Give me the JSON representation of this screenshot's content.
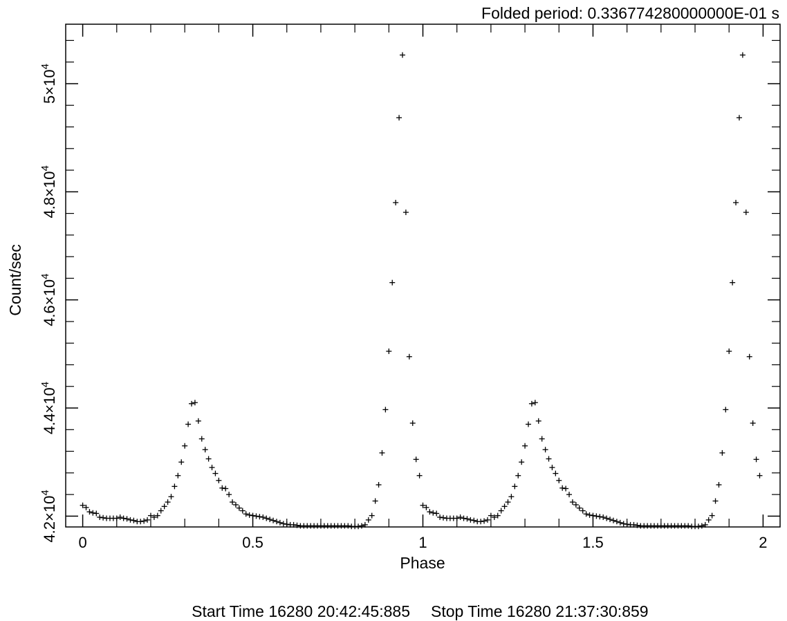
{
  "chart_data": {
    "type": "scatter",
    "title": "",
    "annotation_top_right": "Folded period: 0.336774280000000E-01 s",
    "footer": {
      "start": "Start Time 16280 20:42:45:885",
      "stop": "Stop Time 16280 21:37:30:859"
    },
    "xlabel": "Phase",
    "ylabel": "Count/sec",
    "xlim": [
      -0.05,
      2.05
    ],
    "ylim": [
      41800,
      51100
    ],
    "x_ticks": [
      {
        "value": 0,
        "label": "0"
      },
      {
        "value": 0.5,
        "label": "0.5"
      },
      {
        "value": 1,
        "label": "1"
      },
      {
        "value": 1.5,
        "label": "1.5"
      },
      {
        "value": 2,
        "label": "2"
      }
    ],
    "y_ticks": [
      {
        "value": 42000,
        "mantissa": "4.2×10",
        "exp": "4"
      },
      {
        "value": 44000,
        "mantissa": "4.4×10",
        "exp": "4"
      },
      {
        "value": 46000,
        "mantissa": "4.6×10",
        "exp": "4"
      },
      {
        "value": 48000,
        "mantissa": "4.8×10",
        "exp": "4"
      },
      {
        "value": 50000,
        "mantissa": "5×10",
        "exp": "4"
      }
    ],
    "grid": false,
    "marker": "cross",
    "bins_per_cycle": 100,
    "cycles": 2,
    "series": [
      {
        "values": [
          42200,
          42160,
          42080,
          42060,
          42050,
          41980,
          41970,
          41960,
          41960,
          41960,
          41960,
          41980,
          41960,
          41950,
          41930,
          41920,
          41900,
          41900,
          41910,
          41930,
          42010,
          41980,
          42010,
          42100,
          42180,
          42260,
          42360,
          42550,
          42750,
          43000,
          43300,
          43700,
          44080,
          44100,
          43760,
          43430,
          43230,
          43060,
          42900,
          42790,
          42660,
          42520,
          42510,
          42400,
          42260,
          42210,
          42150,
          42100,
          42040,
          42020,
          42010,
          42000,
          41990,
          41980,
          41960,
          41940,
          41920,
          41900,
          41880,
          41860,
          41850,
          41840,
          41840,
          41830,
          41820,
          41820,
          41820,
          41820,
          41820,
          41820,
          41820,
          41820,
          41820,
          41820,
          41820,
          41820,
          41820,
          41820,
          41820,
          41810,
          41810,
          41810,
          41820,
          41840,
          41930,
          42010,
          42280,
          42580,
          43170,
          43970,
          45050,
          46320,
          47800,
          49370,
          50530,
          47620,
          44950,
          43720,
          43050,
          42750
        ]
      }
    ]
  }
}
